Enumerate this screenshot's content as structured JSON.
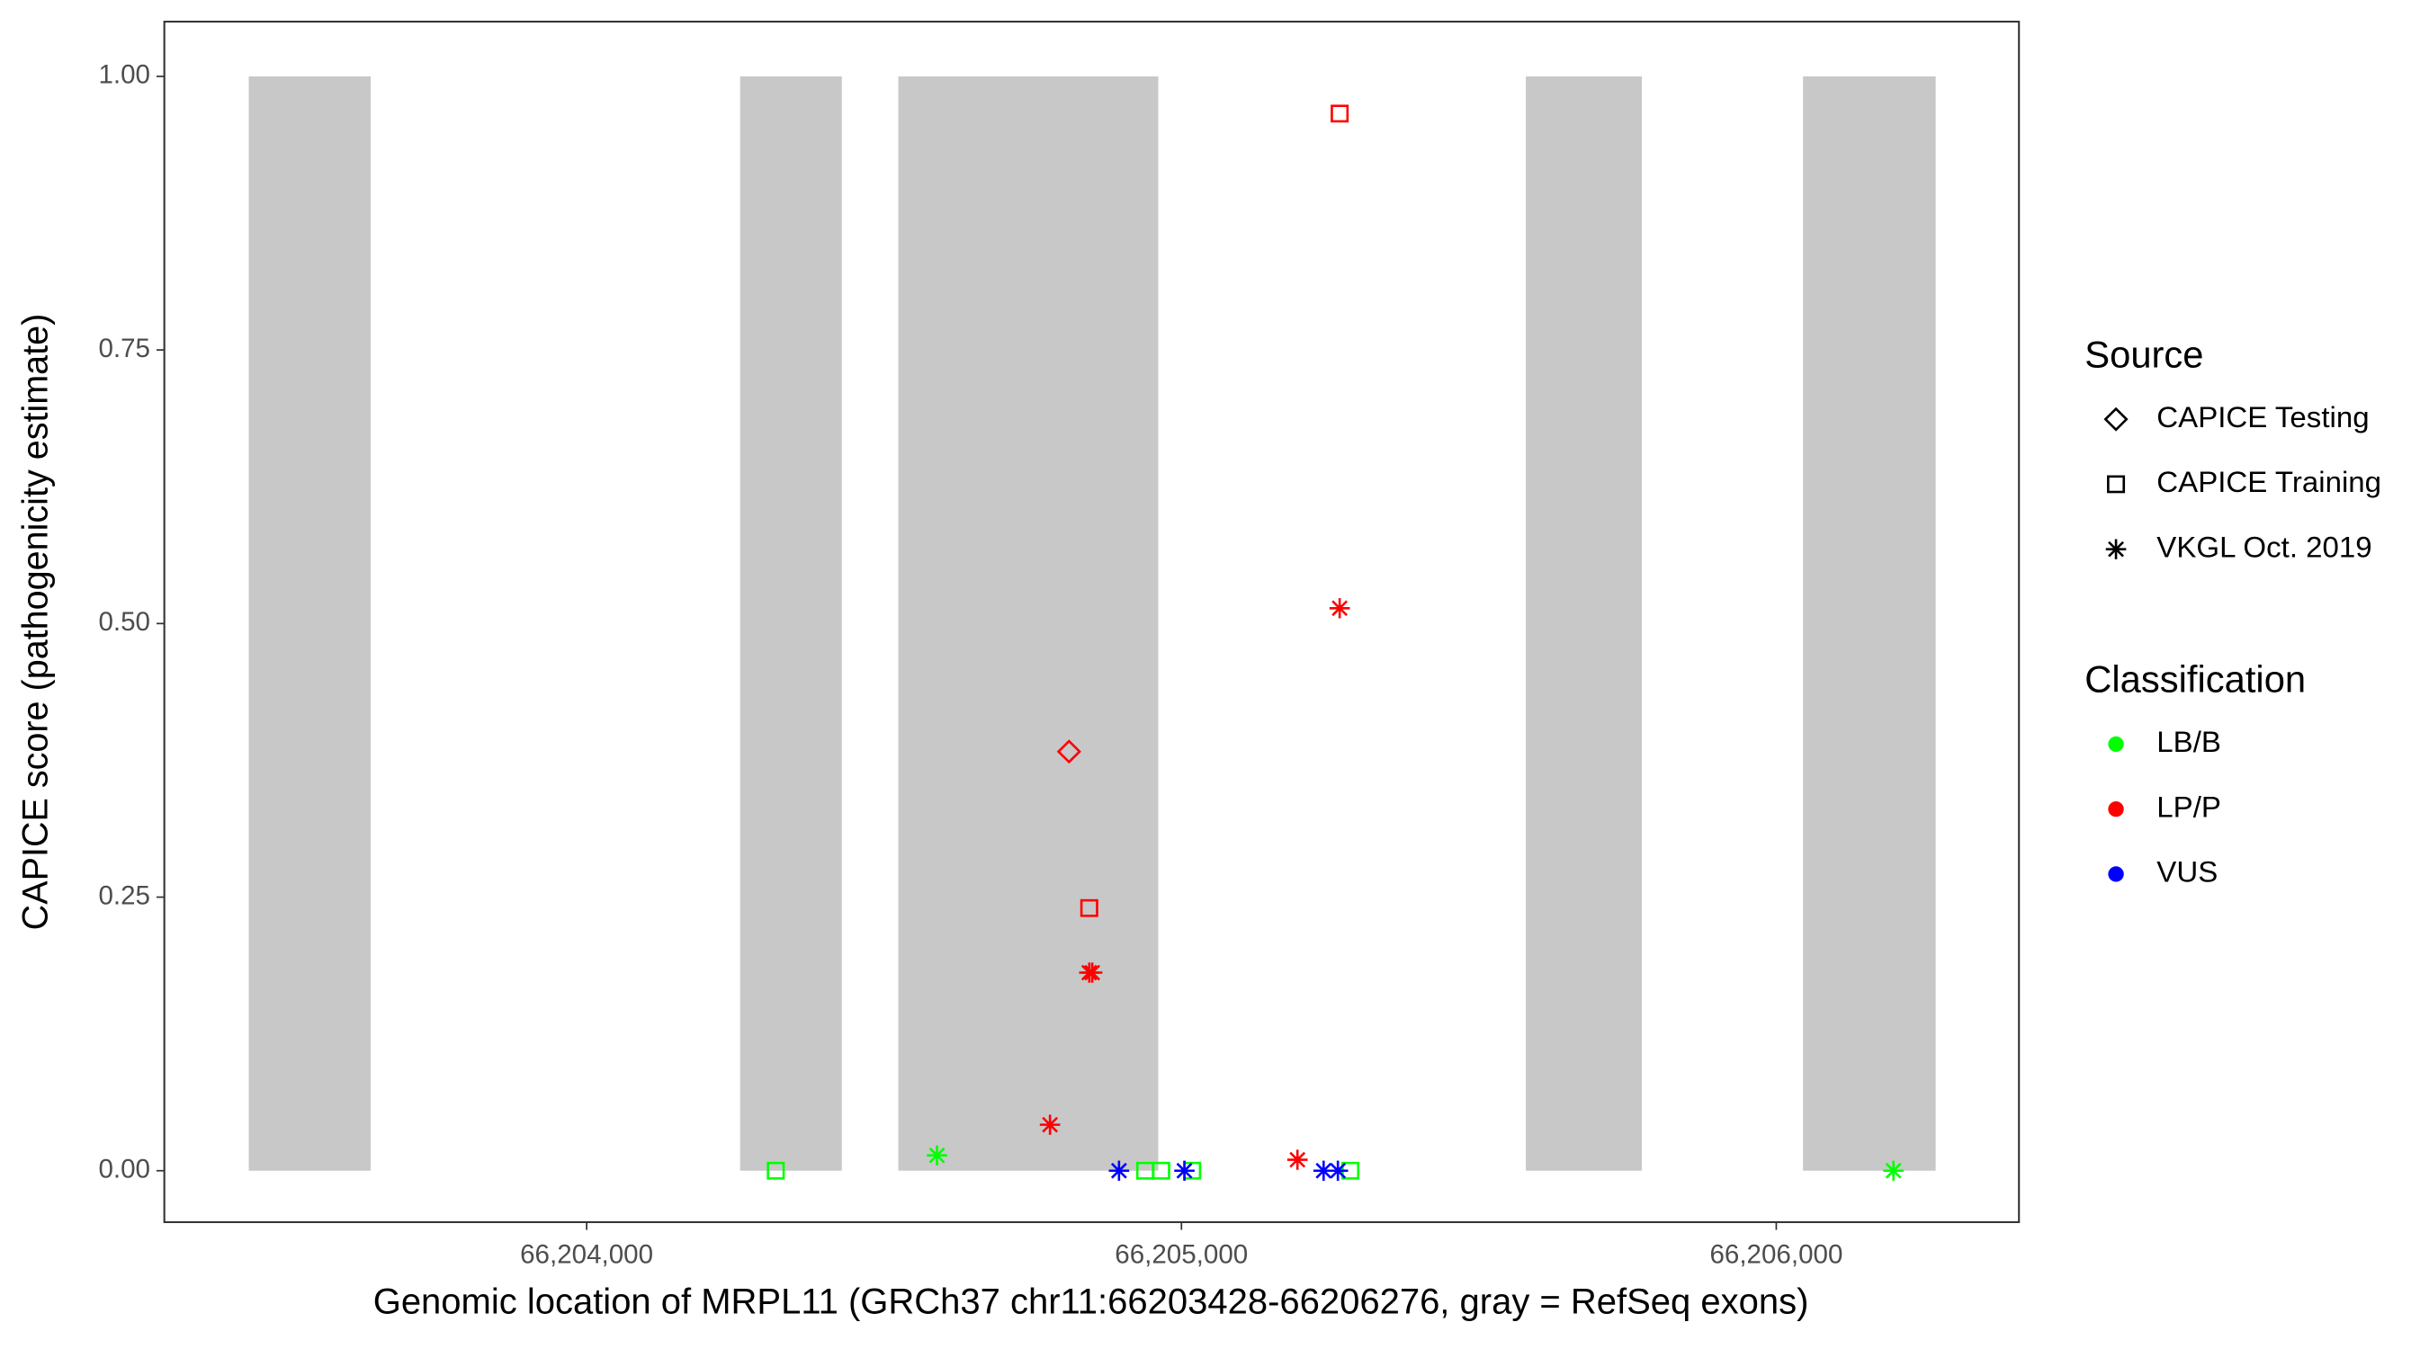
{
  "chart_data": {
    "type": "scatter",
    "x_label": "Genomic location of MRPL11 (GRCh37 chr11:66203428-66206276, gray = RefSeq exons)",
    "y_label": "CAPICE score (pathogenicity estimate)",
    "xlim": [
      66203290,
      66206408
    ],
    "ylim": [
      -0.047,
      1.05
    ],
    "xticks": [
      {
        "value": 66204000,
        "label": "66,204,000"
      },
      {
        "value": 66205000,
        "label": "66,205,000"
      },
      {
        "value": 66206000,
        "label": "66,206,000"
      }
    ],
    "yticks": [
      {
        "value": 0,
        "label": "0.00"
      },
      {
        "value": 0.25,
        "label": "0.25"
      },
      {
        "value": 0.5,
        "label": "0.50"
      },
      {
        "value": 0.75,
        "label": "0.75"
      },
      {
        "value": 1,
        "label": "1.00"
      }
    ],
    "grid": false,
    "exon_color": "#c8c8c8",
    "exons": [
      {
        "start": 66203432,
        "end": 66203637,
        "ymin": 0,
        "ymax": 1
      },
      {
        "start": 66204258,
        "end": 66204429,
        "ymin": 0,
        "ymax": 1
      },
      {
        "start": 66204524,
        "end": 66204961,
        "ymin": 0,
        "ymax": 1
      },
      {
        "start": 66205579,
        "end": 66205774,
        "ymin": 0,
        "ymax": 1
      },
      {
        "start": 66206045,
        "end": 66206268,
        "ymin": 0,
        "ymax": 1
      }
    ],
    "legends": [
      {
        "title": "Source",
        "items": [
          {
            "label": "CAPICE Testing",
            "shape": "diamond"
          },
          {
            "label": "CAPICE Training",
            "shape": "square"
          },
          {
            "label": "VKGL Oct. 2019",
            "shape": "asterisk"
          }
        ]
      },
      {
        "title": "Classification",
        "items": [
          {
            "label": "LB/B",
            "color": "#00ff00"
          },
          {
            "label": "LP/P",
            "color": "#ff0000"
          },
          {
            "label": "VUS",
            "color": "#0000ff"
          }
        ]
      }
    ],
    "points": [
      {
        "x": 66204318,
        "y": 0,
        "source": "CAPICE Training",
        "classification": "LB/B"
      },
      {
        "x": 66204589,
        "y": 0.014,
        "source": "VKGL Oct. 2019",
        "classification": "LB/B"
      },
      {
        "x": 66204779,
        "y": 0.042,
        "source": "VKGL Oct. 2019",
        "classification": "LP/P"
      },
      {
        "x": 66204811,
        "y": 0.383,
        "source": "CAPICE Testing",
        "classification": "LP/P"
      },
      {
        "x": 66204845,
        "y": 0.24,
        "source": "CAPICE Training",
        "classification": "LP/P"
      },
      {
        "x": 66204845,
        "y": 0.181,
        "source": "VKGL Oct. 2019",
        "classification": "LP/P"
      },
      {
        "x": 66204850,
        "y": 0.181,
        "source": "VKGL Oct. 2019",
        "classification": "LP/P"
      },
      {
        "x": 66204939,
        "y": 0,
        "source": "CAPICE Training",
        "classification": "LB/B"
      },
      {
        "x": 66204966,
        "y": 0,
        "source": "CAPICE Training",
        "classification": "LB/B"
      },
      {
        "x": 66205018,
        "y": 0,
        "source": "CAPICE Training",
        "classification": "LB/B"
      },
      {
        "x": 66204895,
        "y": 0,
        "source": "VKGL Oct. 2019",
        "classification": "VUS"
      },
      {
        "x": 66205005,
        "y": 0,
        "source": "VKGL Oct. 2019",
        "classification": "VUS"
      },
      {
        "x": 66205195,
        "y": 0.01,
        "source": "VKGL Oct. 2019",
        "classification": "LP/P"
      },
      {
        "x": 66205284,
        "y": 0,
        "source": "CAPICE Training",
        "classification": "LB/B"
      },
      {
        "x": 66205239,
        "y": 0,
        "source": "VKGL Oct. 2019",
        "classification": "VUS"
      },
      {
        "x": 66205263,
        "y": 0,
        "source": "VKGL Oct. 2019",
        "classification": "VUS"
      },
      {
        "x": 66205266,
        "y": 0.966,
        "source": "CAPICE Training",
        "classification": "LP/P"
      },
      {
        "x": 66205266,
        "y": 0.514,
        "source": "VKGL Oct. 2019",
        "classification": "LP/P"
      },
      {
        "x": 66206197,
        "y": 0,
        "source": "VKGL Oct. 2019",
        "classification": "LB/B"
      }
    ]
  }
}
